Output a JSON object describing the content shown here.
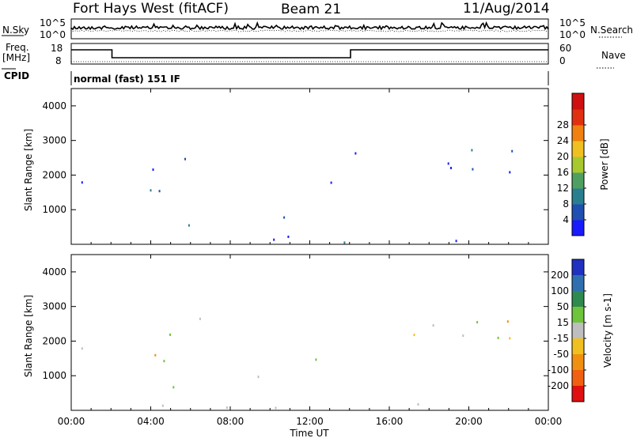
{
  "header": {
    "site": "Fort Hays West (fitACF)",
    "beam": "Beam 21",
    "date": "11/Aug/2014"
  },
  "status_panels": {
    "nsky_label": "N.Sky",
    "nsearch_label": "N.Search",
    "freq_label_1": "Freq.",
    "freq_label_2": "[MHz]",
    "nave_label": "Nave",
    "cpid_label": "CPID",
    "noise_ticks": [
      "10^5",
      "10^0"
    ],
    "freq_ticks": [
      "18",
      "8"
    ],
    "nave_ticks": [
      "60",
      "0"
    ],
    "cpid_text": "normal (fast) 151 IF"
  },
  "chart_data": [
    {
      "type": "heatmap",
      "name": "power",
      "ylabel": "Slant Range [km]",
      "xlabel": "",
      "x_range_hours": [
        0,
        24
      ],
      "ylim": [
        0,
        4500
      ],
      "yticks": [
        "1000",
        "2000",
        "3000",
        "4000"
      ],
      "xticks": [
        "00:00",
        "04:00",
        "08:00",
        "12:00",
        "16:00",
        "20:00",
        "00:00"
      ],
      "colorbar": {
        "label": "Power [dB]",
        "ticks": [
          "4",
          "8",
          "12",
          "16",
          "20",
          "24",
          "28"
        ],
        "colors": [
          "#1a1aff",
          "#1f4fb0",
          "#2a7f8f",
          "#4fa060",
          "#a8c830",
          "#f0c020",
          "#f08010",
          "#e03010",
          "#d01010"
        ]
      }
    },
    {
      "type": "heatmap",
      "name": "velocity",
      "ylabel": "Slant Range [km]",
      "xlabel": "Time UT",
      "x_range_hours": [
        0,
        24
      ],
      "ylim": [
        0,
        4500
      ],
      "yticks": [
        "1000",
        "2000",
        "3000",
        "4000"
      ],
      "xticks": [
        "00:00",
        "04:00",
        "08:00",
        "12:00",
        "16:00",
        "20:00",
        "00:00"
      ],
      "colorbar": {
        "label": "Velocity [m s-1]",
        "ticks": [
          "200",
          "100",
          "50",
          "15",
          "-15",
          "-50",
          "-100",
          "-200"
        ],
        "colors": [
          "#2030c0",
          "#2f6fb0",
          "#2e8a4f",
          "#6ec43a",
          "#bebebe",
          "#f0c020",
          "#f09010",
          "#f06010",
          "#e01010"
        ]
      }
    }
  ]
}
